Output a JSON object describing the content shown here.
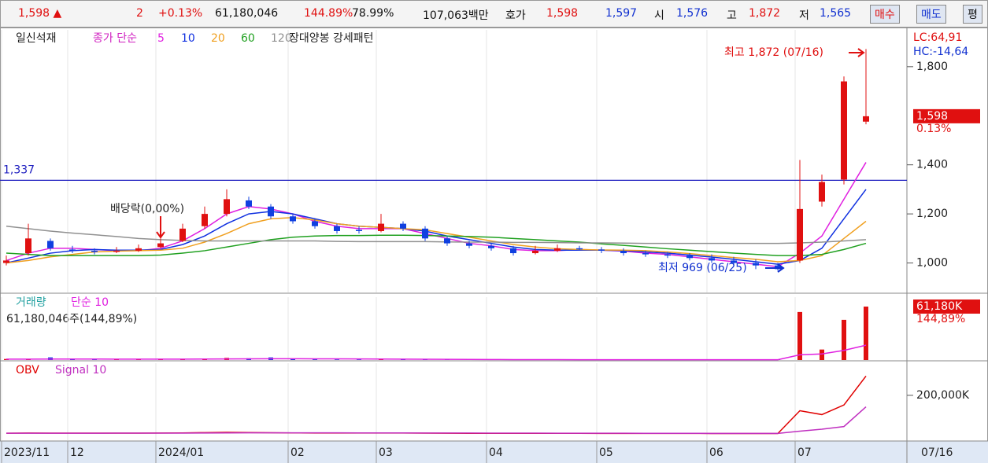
{
  "quote_bar": {
    "price": "1,598 ▲",
    "change": "2",
    "change_pct": "+0.13%",
    "volume": "61,180,046",
    "volume_ratio": "144.89%",
    "turnover_rate": "78.99%",
    "amount": "107,063백만",
    "quote_label": "호가",
    "ask": "1,598",
    "bid": "1,597",
    "open_label": "시",
    "open": "1,576",
    "high_label": "고",
    "high": "1,872",
    "low_label": "저",
    "low": "1,565",
    "buy": "매수",
    "sell": "매도",
    "eval": "평"
  },
  "cursor_date": "07/16",
  "chart_data": [
    {
      "type": "candlestick",
      "title": "일신석재",
      "ma_label": "종가 단순",
      "pattern_label": "장대양봉 강세패턴",
      "up_color": "#e01010",
      "down_color": "#1040e0",
      "categories": [
        "2023/11",
        null,
        null,
        "12",
        null,
        null,
        null,
        "2024/01",
        null,
        null,
        null,
        null,
        null,
        "02",
        null,
        null,
        null,
        "03",
        null,
        null,
        null,
        null,
        "04",
        null,
        null,
        null,
        null,
        "05",
        null,
        null,
        null,
        null,
        "06",
        null,
        null,
        null,
        "07",
        null,
        null,
        null
      ],
      "open": [
        1000,
        1040,
        1090,
        1055,
        1050,
        1045,
        1050,
        1065,
        1090,
        1150,
        1200,
        1255,
        1230,
        1190,
        1170,
        1150,
        1135,
        1130,
        1160,
        1140,
        1100,
        1080,
        1070,
        1060,
        1040,
        1050,
        1060,
        1055,
        1050,
        1040,
        1035,
        1030,
        1020,
        1010,
        1000,
        990,
        1010,
        1250,
        1340,
        1576
      ],
      "high": [
        1030,
        1160,
        1100,
        1070,
        1060,
        1065,
        1075,
        1100,
        1160,
        1230,
        1300,
        1270,
        1240,
        1200,
        1180,
        1160,
        1150,
        1200,
        1170,
        1150,
        1110,
        1090,
        1080,
        1070,
        1070,
        1075,
        1070,
        1065,
        1060,
        1050,
        1045,
        1040,
        1035,
        1025,
        1015,
        1000,
        1420,
        1360,
        1760,
        1872
      ],
      "low": [
        990,
        1030,
        1050,
        1040,
        1035,
        1040,
        1045,
        1060,
        1085,
        1140,
        1190,
        1220,
        1180,
        1160,
        1140,
        1120,
        1120,
        1125,
        1130,
        1090,
        1070,
        1060,
        1050,
        1030,
        1035,
        1045,
        1050,
        1040,
        1030,
        1025,
        1020,
        1010,
        1000,
        985,
        975,
        969,
        1000,
        1230,
        1320,
        1565
      ],
      "close": [
        1010,
        1100,
        1060,
        1050,
        1045,
        1050,
        1060,
        1080,
        1140,
        1200,
        1260,
        1230,
        1190,
        1170,
        1150,
        1130,
        1130,
        1160,
        1140,
        1100,
        1080,
        1070,
        1060,
        1040,
        1050,
        1060,
        1055,
        1050,
        1040,
        1035,
        1030,
        1020,
        1010,
        1000,
        990,
        975,
        1220,
        1330,
        1740,
        1598
      ],
      "series": [
        {
          "name": "5",
          "color": "#e020e0",
          "values": [
            1010,
            1040,
            1060,
            1060,
            1055,
            1050,
            1050,
            1060,
            1090,
            1140,
            1200,
            1230,
            1220,
            1200,
            1170,
            1150,
            1140,
            1140,
            1140,
            1120,
            1100,
            1080,
            1070,
            1055,
            1050,
            1050,
            1055,
            1052,
            1048,
            1040,
            1035,
            1025,
            1015,
            1005,
            995,
            985,
            1040,
            1110,
            1260,
            1410
          ]
        },
        {
          "name": "10",
          "color": "#1030e0",
          "values": [
            1000,
            1020,
            1040,
            1050,
            1055,
            1052,
            1052,
            1055,
            1075,
            1110,
            1160,
            1200,
            1210,
            1200,
            1180,
            1160,
            1150,
            1145,
            1140,
            1130,
            1110,
            1095,
            1080,
            1065,
            1055,
            1052,
            1052,
            1052,
            1050,
            1045,
            1040,
            1032,
            1024,
            1015,
            1005,
            995,
            1010,
            1060,
            1180,
            1300
          ]
        },
        {
          "name": "20",
          "color": "#f0a020",
          "values": [
            1000,
            1010,
            1025,
            1035,
            1045,
            1048,
            1050,
            1052,
            1060,
            1085,
            1120,
            1160,
            1180,
            1185,
            1175,
            1160,
            1150,
            1145,
            1140,
            1135,
            1120,
            1105,
            1090,
            1075,
            1065,
            1058,
            1055,
            1053,
            1052,
            1050,
            1045,
            1038,
            1030,
            1022,
            1015,
            1005,
            1010,
            1030,
            1100,
            1170
          ]
        },
        {
          "name": "60",
          "color": "#20a020",
          "values": [
            1040,
            1035,
            1030,
            1030,
            1030,
            1030,
            1030,
            1032,
            1040,
            1050,
            1065,
            1080,
            1095,
            1105,
            1110,
            1112,
            1112,
            1113,
            1113,
            1112,
            1110,
            1108,
            1105,
            1100,
            1095,
            1090,
            1085,
            1078,
            1072,
            1065,
            1058,
            1052,
            1046,
            1040,
            1035,
            1030,
            1030,
            1035,
            1055,
            1080
          ]
        },
        {
          "name": "120",
          "color": "#909090",
          "values": [
            1150,
            1140,
            1130,
            1122,
            1115,
            1108,
            1100,
            1095,
            1092,
            1090,
            1090,
            1090,
            1090,
            1090,
            1090,
            1088,
            1087,
            1087,
            1087,
            1087,
            1086,
            1085,
            1085,
            1084,
            1084,
            1083,
            1082,
            1082,
            1081,
            1080,
            1080,
            1080,
            1080,
            1080,
            1080,
            1080,
            1082,
            1085,
            1090,
            1095
          ]
        }
      ],
      "ylim": [
        880,
        1950
      ],
      "yticks": [
        {
          "value": 1000,
          "label": "1,000"
        },
        {
          "value": 1200,
          "label": "1,200"
        },
        {
          "value": 1400,
          "label": "1,400"
        },
        {
          "value": 1800,
          "label": "1,800"
        }
      ],
      "hline": {
        "value": 1337,
        "label": "1,337"
      },
      "last_price": {
        "value": 1598,
        "label": "1,598"
      },
      "last_change": "0.13%",
      "lc": "LC:64,91",
      "hc": "HC:-14,64",
      "annotations": {
        "high": "최고 1,872 (07/16)",
        "low": "최저 969 (06/25)",
        "dividend": "배당락(0,00%)"
      }
    },
    {
      "type": "bar",
      "title": "거래량",
      "subtitle": "61,180,046주(144,89%)",
      "values": [
        1200,
        800,
        3000,
        500,
        400,
        600,
        500,
        800,
        1000,
        1500,
        2500,
        2000,
        3000,
        1500,
        800,
        600,
        500,
        1200,
        600,
        500,
        400,
        400,
        400,
        300,
        300,
        300,
        300,
        300,
        300,
        300,
        300,
        300,
        300,
        400,
        500,
        800,
        55000,
        12000,
        46000,
        61180
      ],
      "series": [
        {
          "name": "단순 10",
          "color": "#e020e0",
          "values": [
            1000,
            1000,
            1100,
            1100,
            1100,
            1000,
            1000,
            1000,
            1000,
            1100,
            1200,
            1300,
            1500,
            1500,
            1400,
            1300,
            1200,
            1100,
            1000,
            900,
            800,
            700,
            600,
            500,
            450,
            400,
            350,
            330,
            310,
            300,
            300,
            300,
            300,
            310,
            330,
            360,
            6000,
            7000,
            11000,
            17000
          ]
        }
      ],
      "ylim": [
        0,
        72000
      ],
      "last_volume": {
        "value": 61180,
        "label": "61,180K"
      },
      "last_ratio": "144,89%"
    },
    {
      "type": "line",
      "series": [
        {
          "name": "OBV",
          "color": "#e00000",
          "values": [
            3000,
            4000,
            3500,
            3500,
            3500,
            3600,
            3700,
            4000,
            5000,
            6500,
            8000,
            7000,
            6000,
            5000,
            4500,
            4000,
            4000,
            4500,
            4000,
            3500,
            3000,
            2800,
            2700,
            2500,
            2500,
            2600,
            2500,
            2400,
            2300,
            2200,
            2100,
            2000,
            1900,
            1800,
            1700,
            1500,
            120000,
            100000,
            150000,
            300000
          ]
        },
        {
          "name": "Signal 10",
          "color": "#c030c0",
          "values": [
            3000,
            3200,
            3300,
            3400,
            3400,
            3500,
            3550,
            3650,
            3900,
            4300,
            4800,
            5200,
            5400,
            5400,
            5300,
            5100,
            4900,
            4800,
            4700,
            4500,
            4300,
            4100,
            3900,
            3700,
            3500,
            3400,
            3300,
            3150,
            3000,
            2850,
            2700,
            2550,
            2400,
            2300,
            2200,
            2100,
            14000,
            24000,
            38000,
            140000
          ]
        }
      ],
      "ylim": [
        -33000,
        367000
      ],
      "yticks": [
        {
          "value": 200000,
          "label": "200,000K"
        }
      ]
    }
  ]
}
